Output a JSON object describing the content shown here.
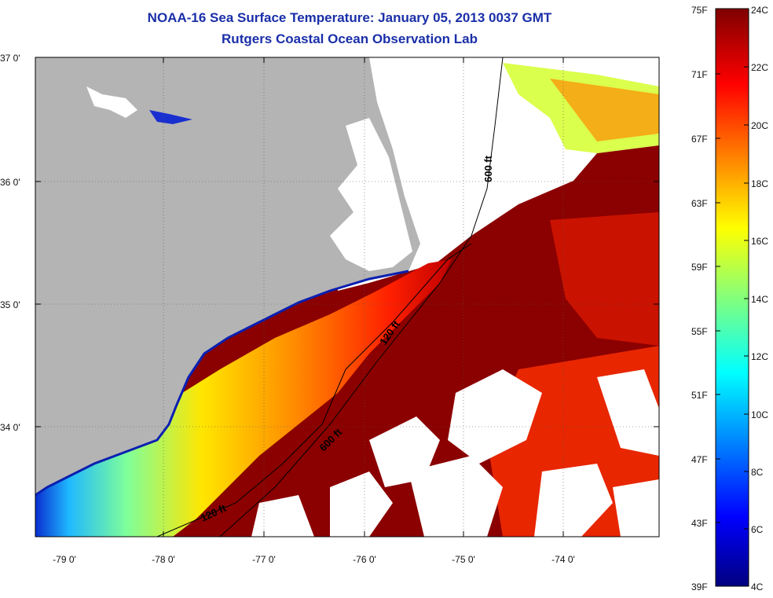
{
  "title": "NOAA-16 Sea Surface Temperature:  January 05, 2013 0037 GMT",
  "subtitle": "Rutgers Coastal Ocean Observation Lab",
  "map": {
    "lon_ticks": [
      "-79 0'",
      "-78 0'",
      "-77 0'",
      "-76 0'",
      "-75 0'",
      "-74 0'"
    ],
    "lat_ticks": [
      "37 0'",
      "36 0'",
      "35 0'",
      "34 0'"
    ],
    "isobath_labels": [
      "600 ft",
      "120 ft",
      "600 ft",
      "120 ft"
    ],
    "colors": {
      "land": "#b4b4b4",
      "cloud": "#ffffff",
      "warm": "#8b0000"
    }
  },
  "colorbar": {
    "fahrenheit": [
      "75F",
      "71F",
      "67F",
      "63F",
      "59F",
      "55F",
      "51F",
      "47F",
      "43F",
      "39F"
    ],
    "celsius": [
      "24C",
      "22C",
      "20C",
      "18C",
      "16C",
      "14C",
      "12C",
      "10C",
      "8C",
      "6C",
      "4C"
    ],
    "range_c": [
      4,
      24
    ]
  }
}
